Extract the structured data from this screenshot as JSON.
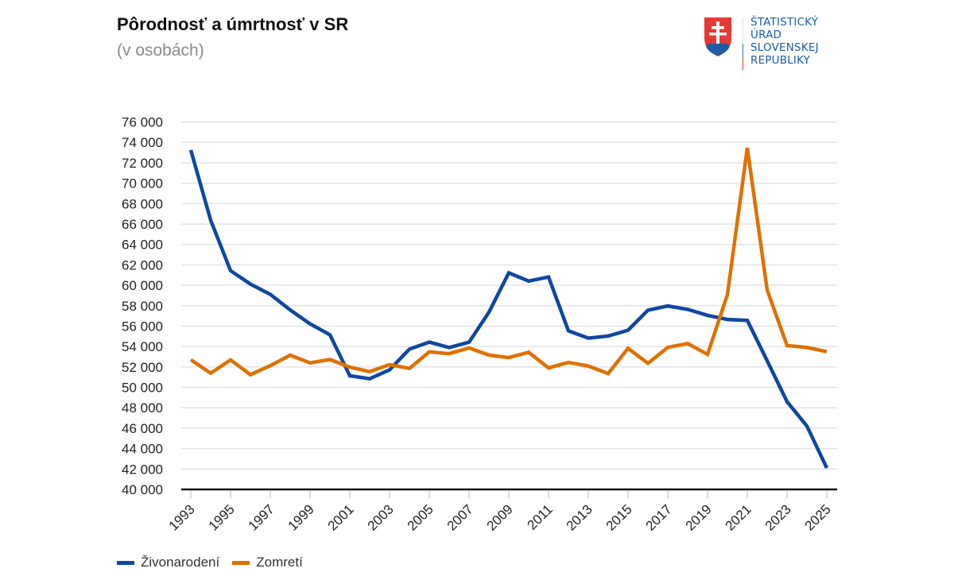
{
  "header": {
    "title": "Pôrodnosť a úmrtnosť v SR",
    "subtitle": "(v osobách)"
  },
  "logo": {
    "lines": [
      "ŠTATISTICKÝ",
      "ÚRAD",
      "SLOVENSKEJ",
      "REPUBLIKY"
    ],
    "icon": "slovak-coat-of-arms-icon",
    "colors": {
      "text": "#1b5ba8",
      "shield_red": "#e53935",
      "shield_blue": "#1b5ba8"
    }
  },
  "chart_data": {
    "type": "line",
    "title": "Pôrodnosť a úmrtnosť v SR",
    "subtitle": "(v osobách)",
    "xlabel": "",
    "ylabel": "",
    "ylim": [
      40000,
      76000
    ],
    "yticks": [
      40000,
      42000,
      44000,
      46000,
      48000,
      50000,
      52000,
      54000,
      56000,
      58000,
      60000,
      62000,
      64000,
      66000,
      68000,
      70000,
      72000,
      74000,
      76000
    ],
    "ytick_labels": [
      "40 000",
      "42 000",
      "44 000",
      "46 000",
      "48 000",
      "50 000",
      "52 000",
      "54 000",
      "56 000",
      "58 000",
      "60 000",
      "62 000",
      "64 000",
      "66 000",
      "68 000",
      "70 000",
      "72 000",
      "74 000",
      "76 000"
    ],
    "x": [
      1993,
      1994,
      1995,
      1996,
      1997,
      1998,
      1999,
      2000,
      2001,
      2002,
      2003,
      2004,
      2005,
      2006,
      2007,
      2008,
      2009,
      2010,
      2011,
      2012,
      2013,
      2014,
      2015,
      2016,
      2017,
      2018,
      2019,
      2020,
      2021,
      2022,
      2023,
      2024,
      2025
    ],
    "xtick_labels": [
      "1993",
      "1995",
      "1997",
      "1999",
      "2001",
      "2003",
      "2005",
      "2007",
      "2009",
      "2011",
      "2013",
      "2015",
      "2017",
      "2019",
      "2021",
      "2023",
      "2025"
    ],
    "grid": true,
    "legend_position": "bottom-left",
    "series": [
      {
        "name": "Živonarodení",
        "color": "#0d47a1",
        "values": [
          73256,
          66370,
          61427,
          60123,
          59111,
          57582,
          56223,
          55151,
          51136,
          50841,
          51713,
          53747,
          54430,
          53904,
          54424,
          57360,
          61217,
          60410,
          60813,
          55535,
          54823,
          55033,
          55602,
          57557,
          57969,
          57639,
          57054,
          56650,
          56565,
          52600,
          48600,
          46200,
          42100
        ]
      },
      {
        "name": "Zomretí",
        "color": "#e07000",
        "values": [
          52707,
          51386,
          52686,
          51236,
          52124,
          53156,
          52402,
          52724,
          51980,
          51532,
          52230,
          51852,
          53475,
          53301,
          53856,
          53164,
          52913,
          53445,
          51903,
          52437,
          52089,
          51346,
          53826,
          52351,
          53914,
          54293,
          53234,
          59089,
          73461,
          59540,
          54100,
          53900,
          53500
        ]
      }
    ]
  }
}
